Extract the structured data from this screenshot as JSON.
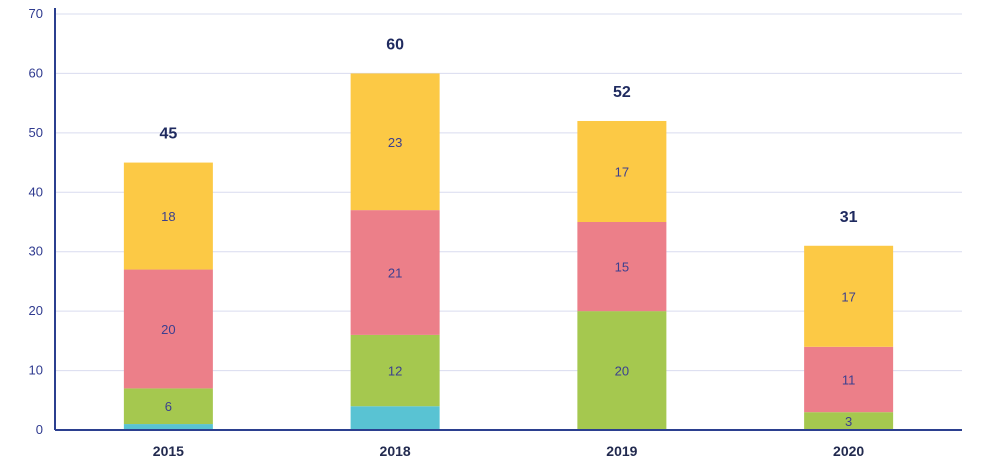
{
  "chart_data": {
    "type": "bar",
    "stacked": true,
    "categories": [
      "2015",
      "2018",
      "2019",
      "2020"
    ],
    "series": [
      {
        "values": [
          1,
          4,
          0,
          0
        ],
        "labels": [
          "",
          "",
          "",
          ""
        ],
        "color": "#59c3d3"
      },
      {
        "values": [
          6,
          12,
          20,
          3
        ],
        "labels": [
          "6",
          "12",
          "20",
          "3"
        ],
        "color": "#a5c84f"
      },
      {
        "values": [
          20,
          21,
          15,
          11
        ],
        "labels": [
          "20",
          "21",
          "15",
          "11"
        ],
        "color": "#ec7f89"
      },
      {
        "values": [
          18,
          23,
          17,
          17
        ],
        "labels": [
          "18",
          "23",
          "17",
          "17"
        ],
        "color": "#fcc945"
      }
    ],
    "totals": [
      "45",
      "60",
      "52",
      "31"
    ],
    "ylim": [
      0,
      70
    ],
    "yticks": [
      "0",
      "10",
      "20",
      "30",
      "40",
      "50",
      "60",
      "70"
    ],
    "grid": true,
    "legend": "none"
  }
}
